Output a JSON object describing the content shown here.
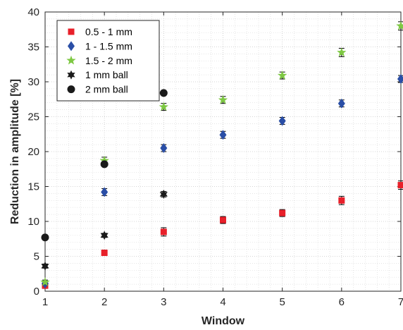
{
  "chart_data": {
    "type": "scatter",
    "xlabel": "Window",
    "ylabel": "Reduction in amplitude [%]",
    "xlim": [
      1,
      7
    ],
    "ylim": [
      0,
      40
    ],
    "x_ticks": [
      1,
      2,
      3,
      4,
      5,
      6,
      7
    ],
    "y_ticks": [
      0,
      5,
      10,
      15,
      20,
      25,
      30,
      35,
      40
    ],
    "grid": true,
    "legend_position": "top-left",
    "series": [
      {
        "name": "0.5 - 1 mm",
        "marker": "square",
        "color": "#e8202a",
        "points": [
          {
            "x": 1,
            "y": 0.8,
            "err": 0.4
          },
          {
            "x": 2,
            "y": 5.5,
            "err": 0.4
          },
          {
            "x": 3,
            "y": 8.5,
            "err": 0.6
          },
          {
            "x": 4,
            "y": 10.2,
            "err": 0.5
          },
          {
            "x": 5,
            "y": 11.2,
            "err": 0.5
          },
          {
            "x": 6,
            "y": 13.0,
            "err": 0.6
          },
          {
            "x": 7,
            "y": 15.2,
            "err": 0.6
          }
        ]
      },
      {
        "name": "1 - 1.5 mm",
        "marker": "diamond",
        "color": "#2a4ea6",
        "points": [
          {
            "x": 1,
            "y": 1.1,
            "err": 0.3
          },
          {
            "x": 2,
            "y": 14.2,
            "err": 0.5
          },
          {
            "x": 3,
            "y": 20.5,
            "err": 0.5
          },
          {
            "x": 4,
            "y": 22.4,
            "err": 0.5
          },
          {
            "x": 5,
            "y": 24.4,
            "err": 0.5
          },
          {
            "x": 6,
            "y": 26.9,
            "err": 0.5
          },
          {
            "x": 7,
            "y": 30.4,
            "err": 0.5
          }
        ]
      },
      {
        "name": "1.5 - 2 mm",
        "marker": "star",
        "color": "#7ec843",
        "points": [
          {
            "x": 1,
            "y": 1.3,
            "err": 0.3
          },
          {
            "x": 2,
            "y": 18.7,
            "err": 0.5
          },
          {
            "x": 3,
            "y": 26.4,
            "err": 0.5
          },
          {
            "x": 4,
            "y": 27.4,
            "err": 0.5
          },
          {
            "x": 5,
            "y": 30.9,
            "err": 0.5
          },
          {
            "x": 6,
            "y": 34.2,
            "err": 0.6
          },
          {
            "x": 7,
            "y": 38.0,
            "err": 0.6
          }
        ]
      },
      {
        "name": "1 mm ball",
        "marker": "hexagram",
        "color": "#1a1a1a",
        "points": [
          {
            "x": 1,
            "y": 3.6,
            "err": 0.3
          },
          {
            "x": 2,
            "y": 8.0,
            "err": 0.3
          },
          {
            "x": 3,
            "y": 13.9,
            "err": 0.4
          }
        ]
      },
      {
        "name": "2 mm ball",
        "marker": "circle",
        "color": "#1a1a1a",
        "points": [
          {
            "x": 1,
            "y": 7.7,
            "err": 0.2
          },
          {
            "x": 2,
            "y": 18.2,
            "err": 0.3
          },
          {
            "x": 3,
            "y": 28.4,
            "err": 0.3
          }
        ]
      }
    ]
  }
}
